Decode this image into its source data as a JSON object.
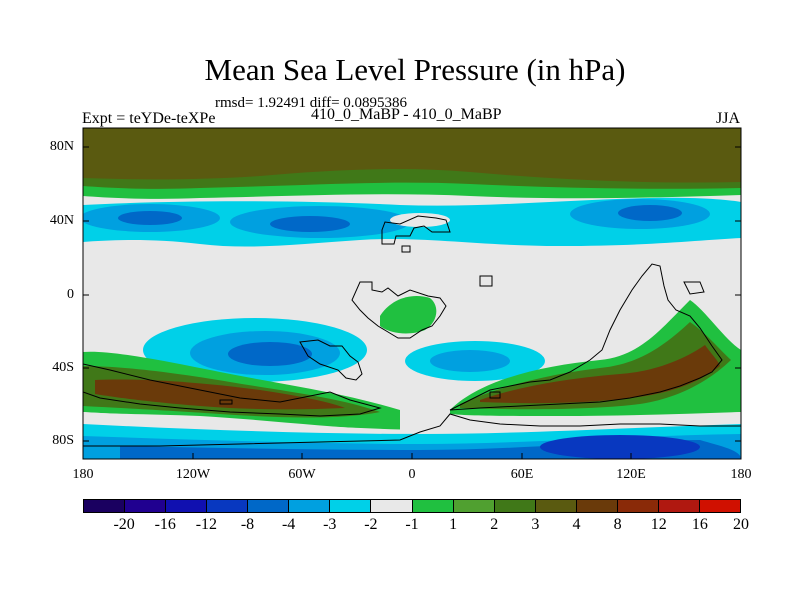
{
  "title": "Mean Sea Level Pressure (in hPa)",
  "stats": "rmsd= 1.92491 diff= 0.0895386",
  "experiment": "Expt = teYDe-teXPe",
  "experiment_pair": "410_0_MaBP - 410_0_MaBP",
  "season": "JJA",
  "lat_labels": [
    "80N",
    "40N",
    "0",
    "40S",
    "80S"
  ],
  "lon_labels": [
    "180",
    "120W",
    "60W",
    "0",
    "60E",
    "120E",
    "180"
  ],
  "colorbar": {
    "colors": [
      "#1a0060",
      "#200090",
      "#1010b0",
      "#0838c0",
      "#0068c8",
      "#00a0e0",
      "#00d0e8",
      "#e8e8e8",
      "#20c040",
      "#50a030",
      "#407818",
      "#5a5a10",
      "#6a3a0a",
      "#8a2a08",
      "#b01810",
      "#d01000"
    ],
    "labels": [
      "-20",
      "-16",
      "-12",
      "-8",
      "-4",
      "-3",
      "-2",
      "-1",
      "1",
      "2",
      "3",
      "4",
      "8",
      "12",
      "16",
      "20"
    ]
  },
  "fill_colors": {
    "neutral": "#e8e8e8",
    "strong_pos": "#6a3a0a",
    "pos4": "#5a5a10",
    "pos2": "#50a030",
    "pos1": "#20c040",
    "neg2": "#00d0e8",
    "neg3": "#00a0e0",
    "neg4": "#0068c8",
    "neg8": "#0838c0",
    "neg12": "#1010b0"
  }
}
